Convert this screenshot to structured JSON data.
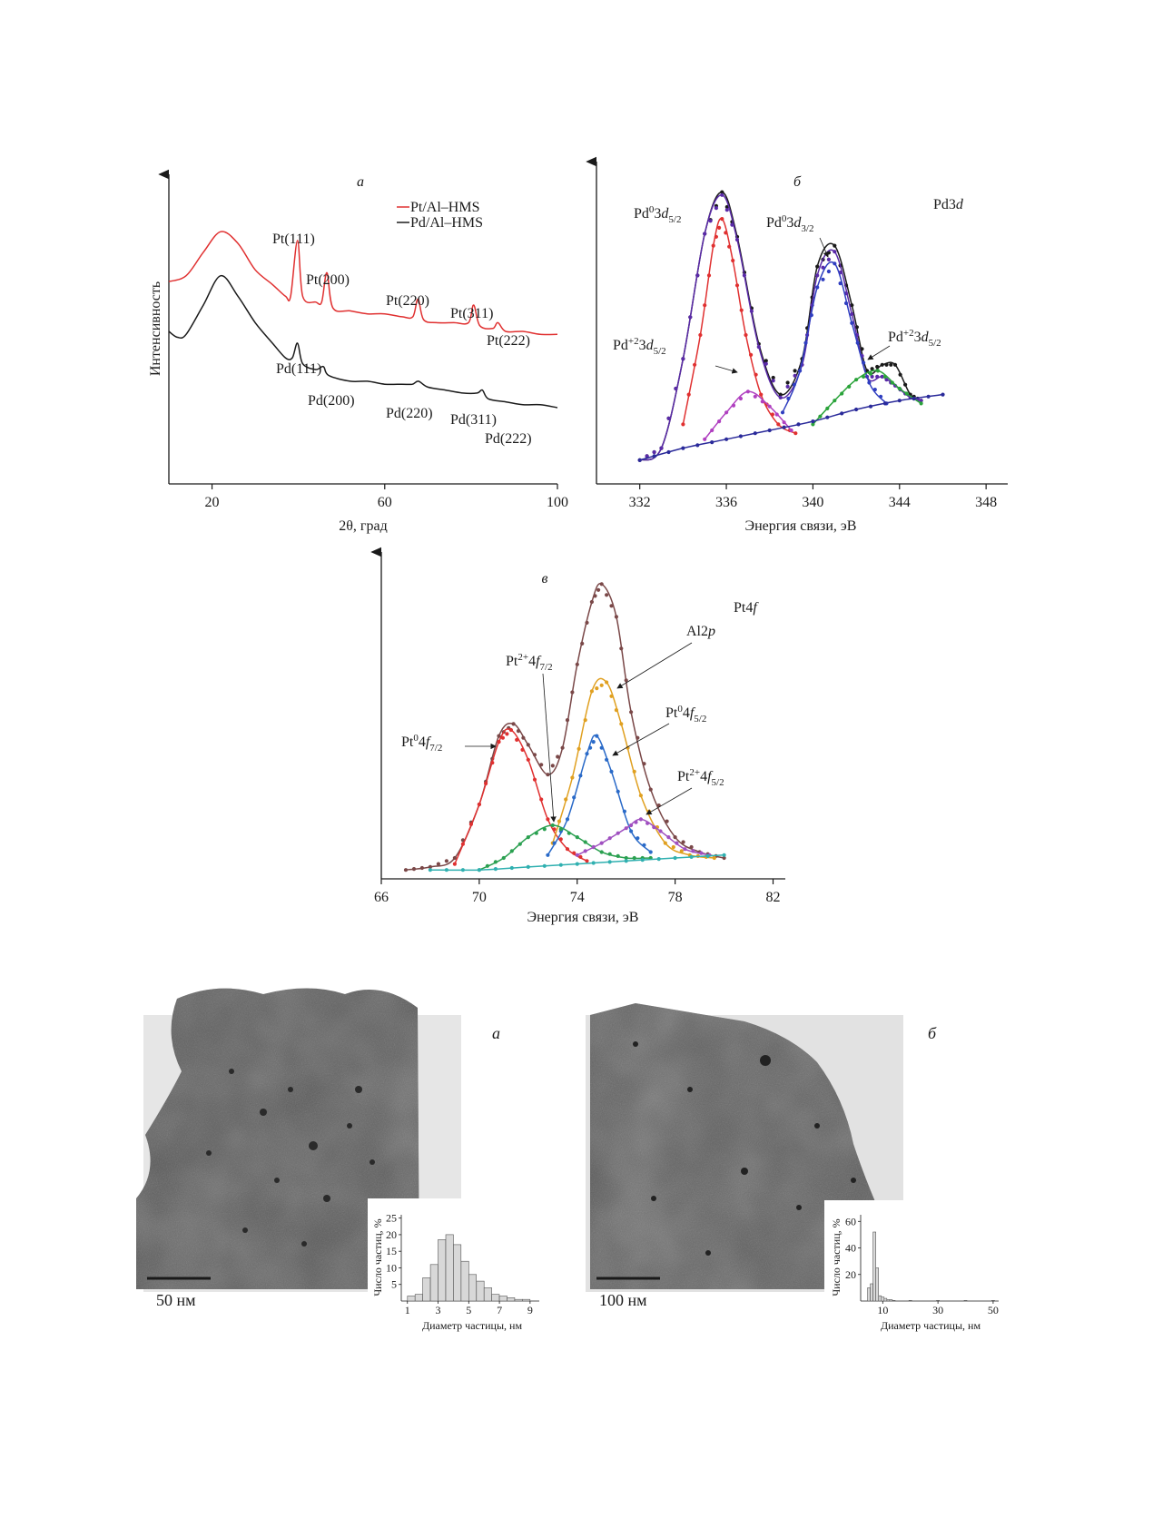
{
  "chart_data": [
    {
      "panel": "а",
      "type": "line",
      "xlabel": "2θ, град",
      "ylabel": "Интенсивность",
      "xlim": [
        10,
        100
      ],
      "xticks": [
        20,
        60,
        100
      ],
      "legend": {
        "placement": "top-right",
        "entries": [
          "Pt/Al–HMS",
          "Pd/Al–HMS"
        ]
      },
      "series": [
        {
          "name": "Pt/Al–HMS",
          "color": "#e03030",
          "x": [
            10,
            14,
            18,
            22,
            26,
            30,
            34,
            37,
            38.2,
            39.8,
            41,
            44,
            45.4,
            46.6,
            48,
            52,
            56,
            60,
            64,
            66.5,
            67.7,
            69,
            72,
            76,
            79.4,
            80.6,
            82,
            85,
            86.2,
            88,
            92,
            96,
            100
          ],
          "y": [
            0.69,
            0.71,
            0.79,
            0.86,
            0.82,
            0.73,
            0.68,
            0.64,
            0.64,
            0.83,
            0.64,
            0.62,
            0.62,
            0.72,
            0.6,
            0.59,
            0.58,
            0.58,
            0.57,
            0.57,
            0.63,
            0.56,
            0.55,
            0.55,
            0.55,
            0.61,
            0.54,
            0.53,
            0.55,
            0.52,
            0.52,
            0.51,
            0.51
          ]
        },
        {
          "name": "Pd/Al–HMS",
          "color": "#1a1a1a",
          "x": [
            10,
            12,
            14,
            18,
            22,
            26,
            30,
            34,
            37,
            38.6,
            39.8,
            41,
            44,
            45.8,
            47,
            52,
            56,
            60,
            64,
            66.4,
            67.8,
            70,
            74,
            78,
            81.4,
            82.6,
            84,
            88,
            92,
            96,
            100
          ],
          "y": [
            0.52,
            0.5,
            0.51,
            0.61,
            0.71,
            0.64,
            0.55,
            0.48,
            0.43,
            0.43,
            0.48,
            0.41,
            0.39,
            0.4,
            0.37,
            0.35,
            0.35,
            0.34,
            0.34,
            0.34,
            0.35,
            0.33,
            0.32,
            0.31,
            0.31,
            0.32,
            0.29,
            0.28,
            0.27,
            0.27,
            0.26
          ]
        }
      ],
      "annotations": [
        "Pt(111)",
        "Pt(200)",
        "Pt(220)",
        "Pt(311)",
        "Pt(222)",
        "Pd(111)",
        "Pd(200)",
        "Pd(220)",
        "Pd(311)",
        "Pd(222)"
      ]
    },
    {
      "panel": "б",
      "type": "line",
      "xlabel": "Энергия связи, эВ",
      "xlim": [
        330,
        349
      ],
      "xticks": [
        332,
        336,
        340,
        344,
        348
      ],
      "region": "Pd3d",
      "series": [
        {
          "color": "#1a1a1a",
          "x": [
            332,
            333,
            334,
            335,
            335.8,
            336.5,
            337.5,
            338.5,
            339.5,
            340.2,
            341,
            341.8,
            342.5,
            343.2,
            343.8,
            344.5,
            345
          ],
          "y": [
            0.08,
            0.12,
            0.42,
            0.84,
            0.98,
            0.83,
            0.47,
            0.3,
            0.42,
            0.73,
            0.8,
            0.6,
            0.38,
            0.4,
            0.4,
            0.3,
            0.28
          ]
        },
        {
          "color": "#5a2aa8",
          "x": [
            332,
            333,
            334,
            335,
            335.8,
            336.5,
            337.5,
            338.5,
            339.5,
            340.2,
            341,
            341.8,
            342.5,
            343.2,
            343.8,
            344.5,
            345
          ],
          "y": [
            0.08,
            0.12,
            0.42,
            0.84,
            0.97,
            0.82,
            0.46,
            0.29,
            0.4,
            0.7,
            0.78,
            0.57,
            0.36,
            0.36,
            0.33,
            0.29,
            0.28
          ]
        },
        {
          "color": "#e03030",
          "x": [
            334,
            334.8,
            335.4,
            335.8,
            336.3,
            336.9,
            337.6,
            338.4,
            339.2
          ],
          "y": [
            0.2,
            0.5,
            0.8,
            0.89,
            0.75,
            0.5,
            0.3,
            0.2,
            0.17
          ]
        },
        {
          "color": "#2f3ec0",
          "x": [
            338.6,
            339.4,
            340.2,
            341,
            341.8,
            342.6,
            343.4
          ],
          "y": [
            0.24,
            0.38,
            0.66,
            0.74,
            0.54,
            0.34,
            0.27
          ]
        },
        {
          "color": "#b040c0",
          "x": [
            335,
            336,
            337,
            338,
            339
          ],
          "y": [
            0.15,
            0.24,
            0.31,
            0.26,
            0.18
          ]
        },
        {
          "color": "#2aa33a",
          "x": [
            340,
            341,
            342,
            343,
            344,
            345
          ],
          "y": [
            0.2,
            0.28,
            0.35,
            0.38,
            0.32,
            0.27
          ]
        },
        {
          "color": "#2a2a9a",
          "x": [
            332,
            334,
            336,
            338,
            340,
            342,
            344,
            346
          ],
          "y": [
            0.08,
            0.12,
            0.15,
            0.18,
            0.21,
            0.25,
            0.28,
            0.3
          ]
        }
      ],
      "annotations": [
        "Pd⁰3d5/2",
        "Pd⁰3d3/2",
        "Pd⁺²3d5/2",
        "Pd⁺²3d5/2"
      ]
    },
    {
      "panel": "в",
      "type": "line",
      "xlabel": "Энергия связи, эВ",
      "xlim": [
        66,
        82.5
      ],
      "xticks": [
        66,
        70,
        74,
        78,
        82
      ],
      "region": "Pt4f",
      "series": [
        {
          "color": "#7a4848",
          "x": [
            67,
            68,
            69,
            70,
            70.8,
            71.4,
            72,
            72.8,
            73.4,
            74,
            74.6,
            75,
            75.6,
            76.2,
            77,
            78,
            79,
            80
          ],
          "y": [
            0.03,
            0.04,
            0.07,
            0.25,
            0.48,
            0.52,
            0.45,
            0.35,
            0.44,
            0.72,
            0.93,
            0.99,
            0.88,
            0.56,
            0.3,
            0.14,
            0.09,
            0.07
          ]
        },
        {
          "color": "#e03030",
          "x": [
            69,
            70,
            70.8,
            71.3,
            72,
            72.8,
            73.6,
            74.4
          ],
          "y": [
            0.05,
            0.25,
            0.46,
            0.5,
            0.4,
            0.2,
            0.1,
            0.06
          ]
        },
        {
          "color": "#e0a020",
          "x": [
            73,
            73.8,
            74.6,
            75.2,
            75.8,
            76.6,
            77.6,
            78.6,
            79.6
          ],
          "y": [
            0.12,
            0.34,
            0.63,
            0.66,
            0.52,
            0.28,
            0.12,
            0.08,
            0.07
          ]
        },
        {
          "color": "#2a6ac8",
          "x": [
            72.8,
            73.6,
            74.4,
            74.8,
            75.4,
            76.2,
            77
          ],
          "y": [
            0.08,
            0.2,
            0.42,
            0.48,
            0.36,
            0.16,
            0.09
          ]
        },
        {
          "color": "#2aa050",
          "x": [
            70,
            71,
            72,
            73,
            74,
            75,
            76,
            77
          ],
          "y": [
            0.03,
            0.07,
            0.14,
            0.18,
            0.14,
            0.09,
            0.07,
            0.07
          ]
        },
        {
          "color": "#a050c0",
          "x": [
            74,
            75,
            76,
            76.6,
            77.4,
            78.4,
            79.4
          ],
          "y": [
            0.08,
            0.12,
            0.17,
            0.2,
            0.16,
            0.1,
            0.08
          ]
        },
        {
          "color": "#30b0b0",
          "x": [
            68,
            70,
            72,
            74,
            76,
            78,
            80
          ],
          "y": [
            0.03,
            0.03,
            0.04,
            0.05,
            0.06,
            0.07,
            0.08
          ]
        }
      ],
      "annotations": [
        "Pt⁰4f7/2",
        "Pt²⁺4f7/2",
        "Al2p",
        "Pt⁰4f5/2",
        "Pt²⁺4f5/2"
      ]
    },
    {
      "panel": "а (гистограмма)",
      "type": "bar",
      "xlabel": "Диаметр частицы, нм",
      "ylabel": "Число частиц, %",
      "xlim": [
        0.6,
        9.6
      ],
      "ylim": [
        0,
        26
      ],
      "xticks": [
        1,
        3,
        5,
        7,
        9
      ],
      "yticks": [
        5,
        10,
        15,
        20,
        25
      ],
      "categories": [
        1.25,
        1.75,
        2.25,
        2.75,
        3.25,
        3.75,
        4.25,
        4.75,
        5.25,
        5.75,
        6.25,
        6.75,
        7.25,
        7.75,
        8.25,
        8.75
      ],
      "values": [
        1.5,
        2,
        7,
        11,
        18.5,
        20,
        17,
        12,
        8,
        6,
        4,
        2,
        1.5,
        1,
        0.5,
        0.5
      ]
    },
    {
      "panel": "б (гистограмма)",
      "type": "bar",
      "xlabel": "Диаметр частицы, нм",
      "ylabel": "Число частиц, %",
      "xlim": [
        2,
        52
      ],
      "ylim": [
        0,
        65
      ],
      "xticks": [
        10,
        30,
        50
      ],
      "yticks": [
        20,
        40,
        60
      ],
      "categories": [
        5,
        6,
        7,
        8,
        9,
        10,
        11,
        12,
        13,
        14,
        20,
        30,
        40,
        50
      ],
      "values": [
        10,
        13,
        52,
        25,
        4,
        3,
        2,
        1,
        1,
        0.5,
        0.5,
        0.5,
        0.5,
        0.5
      ]
    }
  ],
  "panels": {
    "a": {
      "label": "а",
      "legend_pt": "Pt/Al–HMS",
      "legend_pd": "Pd/Al–HMS",
      "xlabel": "2θ, град",
      "ylabel": "Интенсивность",
      "ticks": [
        "20",
        "60",
        "100"
      ],
      "peaks": [
        "Pt(111)",
        "Pt(200)",
        "Pt(220)",
        "Pt(311)",
        "Pt(222)",
        "Pd(111)",
        "Pd(200)",
        "Pd(220)",
        "Pd(311)",
        "Pd(222)"
      ]
    },
    "b": {
      "label": "б",
      "region": "Pd3d",
      "xlabel": "Энергия связи, эВ",
      "ticks": [
        "332",
        "336",
        "340",
        "344",
        "348"
      ]
    },
    "c": {
      "label": "в",
      "region": "Pt4f",
      "xlabel": "Энергия связи, эВ",
      "ticks": [
        "66",
        "70",
        "74",
        "78",
        "82"
      ]
    },
    "tem_a": {
      "label": "а",
      "scale": "50 нм",
      "hist_xlabel": "Диаметр частицы, нм",
      "hist_ylabel": "Число частиц, %",
      "xticks": [
        "1",
        "3",
        "5",
        "7",
        "9"
      ],
      "yticks": [
        "5",
        "10",
        "15",
        "20",
        "25"
      ]
    },
    "tem_b": {
      "label": "б",
      "scale": "100 нм",
      "hist_xlabel": "Диаметр частицы, нм",
      "hist_ylabel": "Число частиц, %",
      "xticks": [
        "10",
        "30",
        "50"
      ],
      "yticks": [
        "20",
        "40",
        "60"
      ]
    }
  }
}
